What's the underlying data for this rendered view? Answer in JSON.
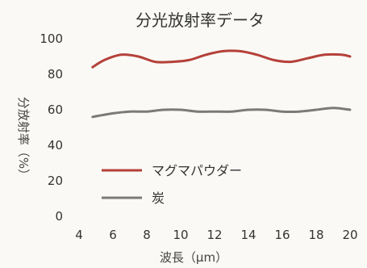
{
  "chart_data": {
    "type": "line",
    "title": "分光放射率データ",
    "xlabel": "波長（μm）",
    "ylabel": "分放射率（%）",
    "xlim": [
      4,
      20
    ],
    "ylim": [
      0,
      100
    ],
    "xticks": [
      4,
      6,
      8,
      10,
      12,
      14,
      16,
      18,
      20
    ],
    "yticks": [
      0,
      20,
      40,
      60,
      80,
      100
    ],
    "grid": false,
    "legend": "center-left",
    "series": [
      {
        "name": "マグマパウダー",
        "color": "#b5403a",
        "x": [
          4.8,
          5.5,
          6.5,
          7.5,
          8.5,
          9.5,
          10.5,
          11.5,
          12.5,
          13.5,
          14.5,
          15.5,
          16.5,
          17.5,
          18.5,
          19.5,
          20
        ],
        "y": [
          84,
          88,
          91,
          90,
          87,
          87,
          88,
          91,
          93,
          93,
          91,
          88,
          87,
          89,
          91,
          91,
          90
        ]
      },
      {
        "name": "炭",
        "color": "#7a7a78",
        "x": [
          4.8,
          6,
          7,
          8,
          9,
          10,
          11,
          12,
          13,
          14,
          15,
          16,
          17,
          18,
          19,
          20
        ],
        "y": [
          56,
          58,
          59,
          59,
          60,
          60,
          59,
          59,
          59,
          60,
          60,
          59,
          59,
          60,
          61,
          60
        ]
      }
    ]
  }
}
